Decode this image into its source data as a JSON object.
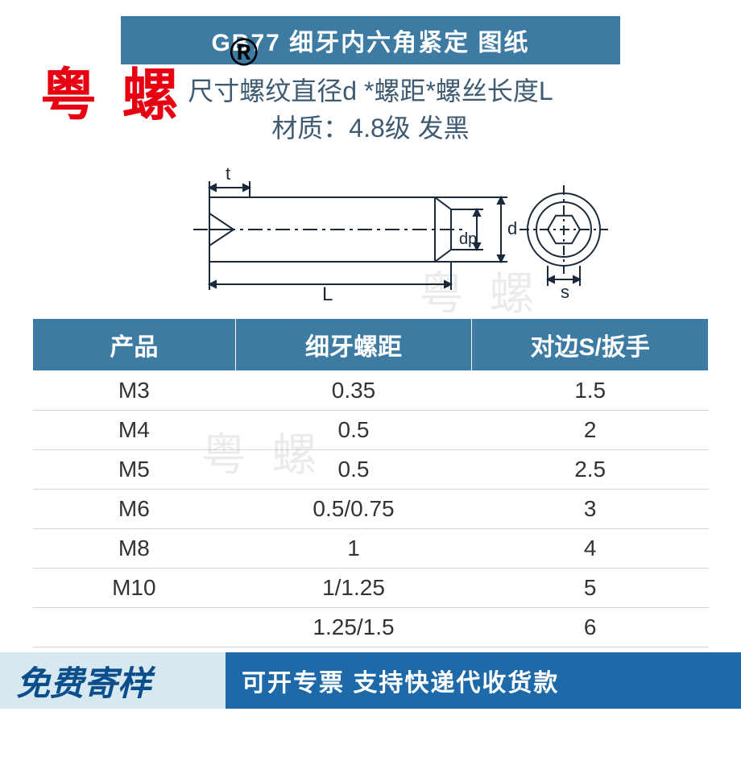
{
  "header": {
    "title": "GB77  细牙内六角紧定  图纸",
    "brand_overlay": "粤 螺",
    "reg_mark": "®"
  },
  "info": {
    "line1_prefix": "尺寸",
    "line1_rest": "螺纹直径d *螺距*螺丝长度L",
    "line2": "材质：4.8级 发黑"
  },
  "diagram_labels": {
    "t": "t",
    "L": "L",
    "dp": "dp",
    "d": "d",
    "s": "s"
  },
  "watermark": "粤 螺",
  "table": {
    "columns": [
      "产品",
      "细牙螺距",
      "对边S/扳手"
    ],
    "rows": [
      [
        "M3",
        "0.35",
        "1.5"
      ],
      [
        "M4",
        "0.5",
        "2"
      ],
      [
        "M5",
        "0.5",
        "2.5"
      ],
      [
        "M6",
        "0.5/0.75",
        "3"
      ],
      [
        "M8",
        "1",
        "4"
      ],
      [
        "M10",
        "1/1.25",
        "5"
      ],
      [
        "",
        "1.25/1.5",
        "6"
      ]
    ],
    "header_bg": "#3e7ba3",
    "header_fg": "#ffffff",
    "row_border": "#cfd8de",
    "font_size": 28
  },
  "footer": {
    "left": "免费寄样",
    "right": "可开专票 支持快递代收货款",
    "left_bg": "#d7e8f0",
    "left_fg": "#0a4e8c",
    "right_bg": "#1e6aa8",
    "right_fg": "#ffffff"
  },
  "colors": {
    "primary": "#3e7ba3",
    "brand_red": "#e60012",
    "text_blue": "#3e5b72"
  }
}
